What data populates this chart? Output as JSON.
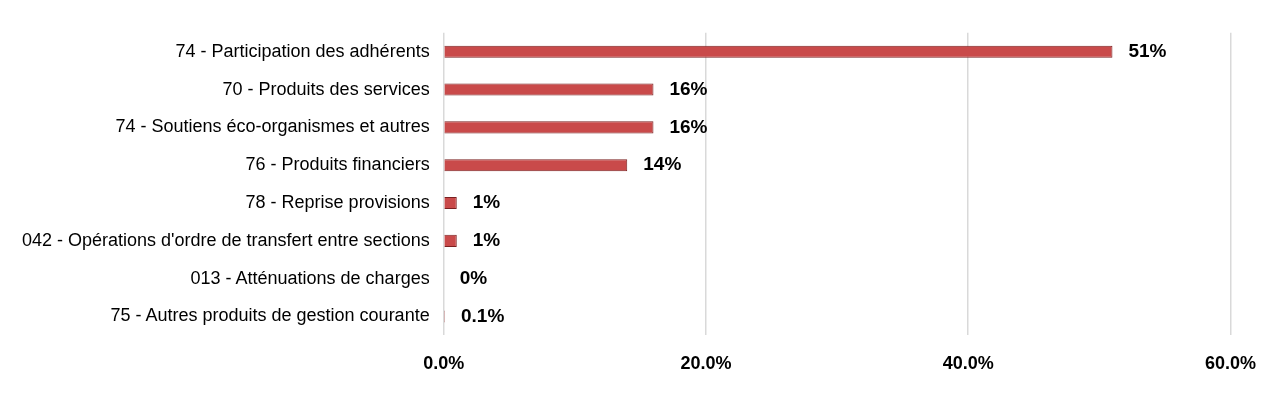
{
  "chart_data": {
    "type": "bar",
    "orientation": "horizontal",
    "categories": [
      "74 - Participation des adhérents",
      "70 - Produits des services",
      "74 - Soutiens éco-organismes et autres",
      "76 - Produits financiers",
      "78 - Reprise provisions",
      "042 - Opérations d'ordre de transfert entre sections",
      "013 - Atténuations de charges",
      "75 - Autres produits de gestion courante"
    ],
    "values": [
      51,
      16,
      16,
      14,
      1,
      1,
      0,
      0.1
    ],
    "value_labels": [
      "51%",
      "16%",
      "16%",
      "14%",
      "1%",
      "1%",
      "0%",
      "0.1%"
    ],
    "color": "#c94a4a",
    "xlim": [
      0,
      60
    ],
    "xticks": [
      {
        "value": 0,
        "label": "0.0%"
      },
      {
        "value": 20,
        "label": "20.0%"
      },
      {
        "value": 40,
        "label": "40.0%"
      },
      {
        "value": 60,
        "label": "60.0%"
      }
    ],
    "grid": "x",
    "legend": false
  }
}
